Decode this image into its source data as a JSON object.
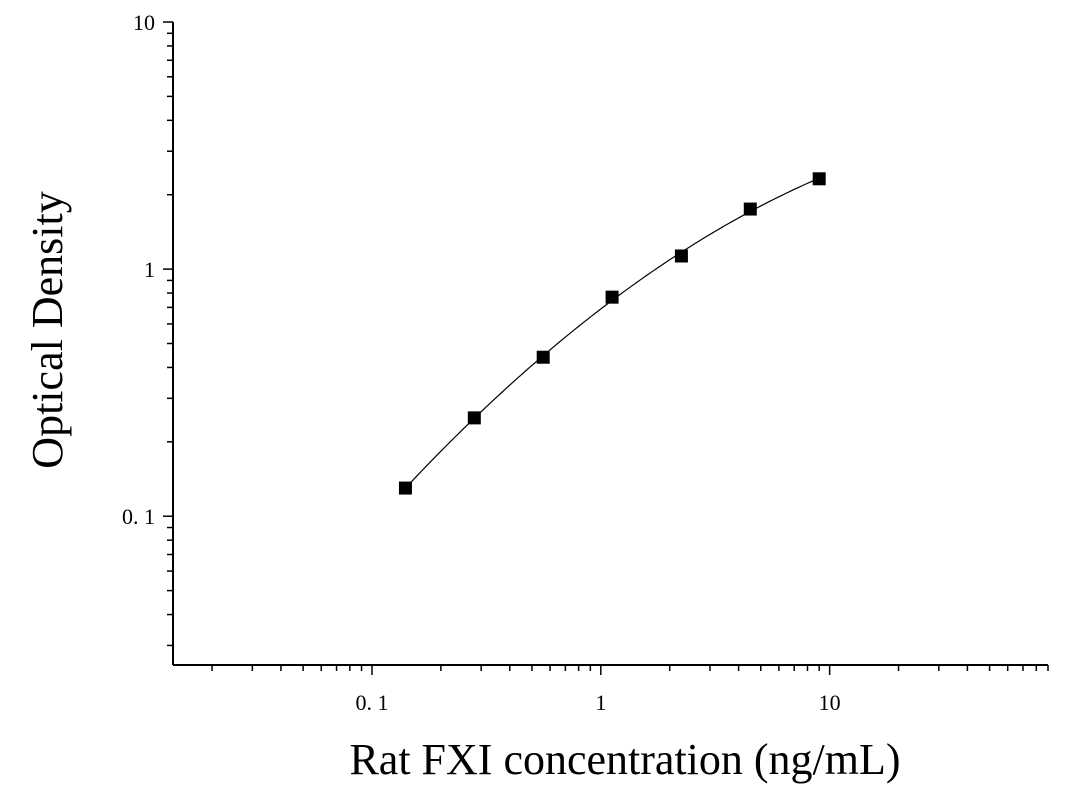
{
  "chart_data": {
    "type": "scatter",
    "xlabel": "Rat FXI concentration (ng/mL)",
    "ylabel": "Optical Density",
    "x_scale": "log",
    "y_scale": "log",
    "xlim": [
      0.0135,
      90
    ],
    "ylim": [
      0.025,
      10
    ],
    "x_ticks": [
      {
        "value": 0.1,
        "label": "0. 1"
      },
      {
        "value": 1,
        "label": "1"
      },
      {
        "value": 10,
        "label": "10"
      }
    ],
    "y_ticks": [
      {
        "value": 0.1,
        "label": "0. 1"
      },
      {
        "value": 1,
        "label": "1"
      },
      {
        "value": 10,
        "label": "10"
      }
    ],
    "grid": false,
    "series": [
      {
        "x": [
          0.14,
          0.28,
          0.56,
          1.12,
          2.25,
          4.5,
          9
        ],
        "y": [
          0.13,
          0.25,
          0.44,
          0.77,
          1.13,
          1.75,
          2.32
        ],
        "marker": "square",
        "fit_line": true,
        "color": "#000000"
      }
    ]
  }
}
